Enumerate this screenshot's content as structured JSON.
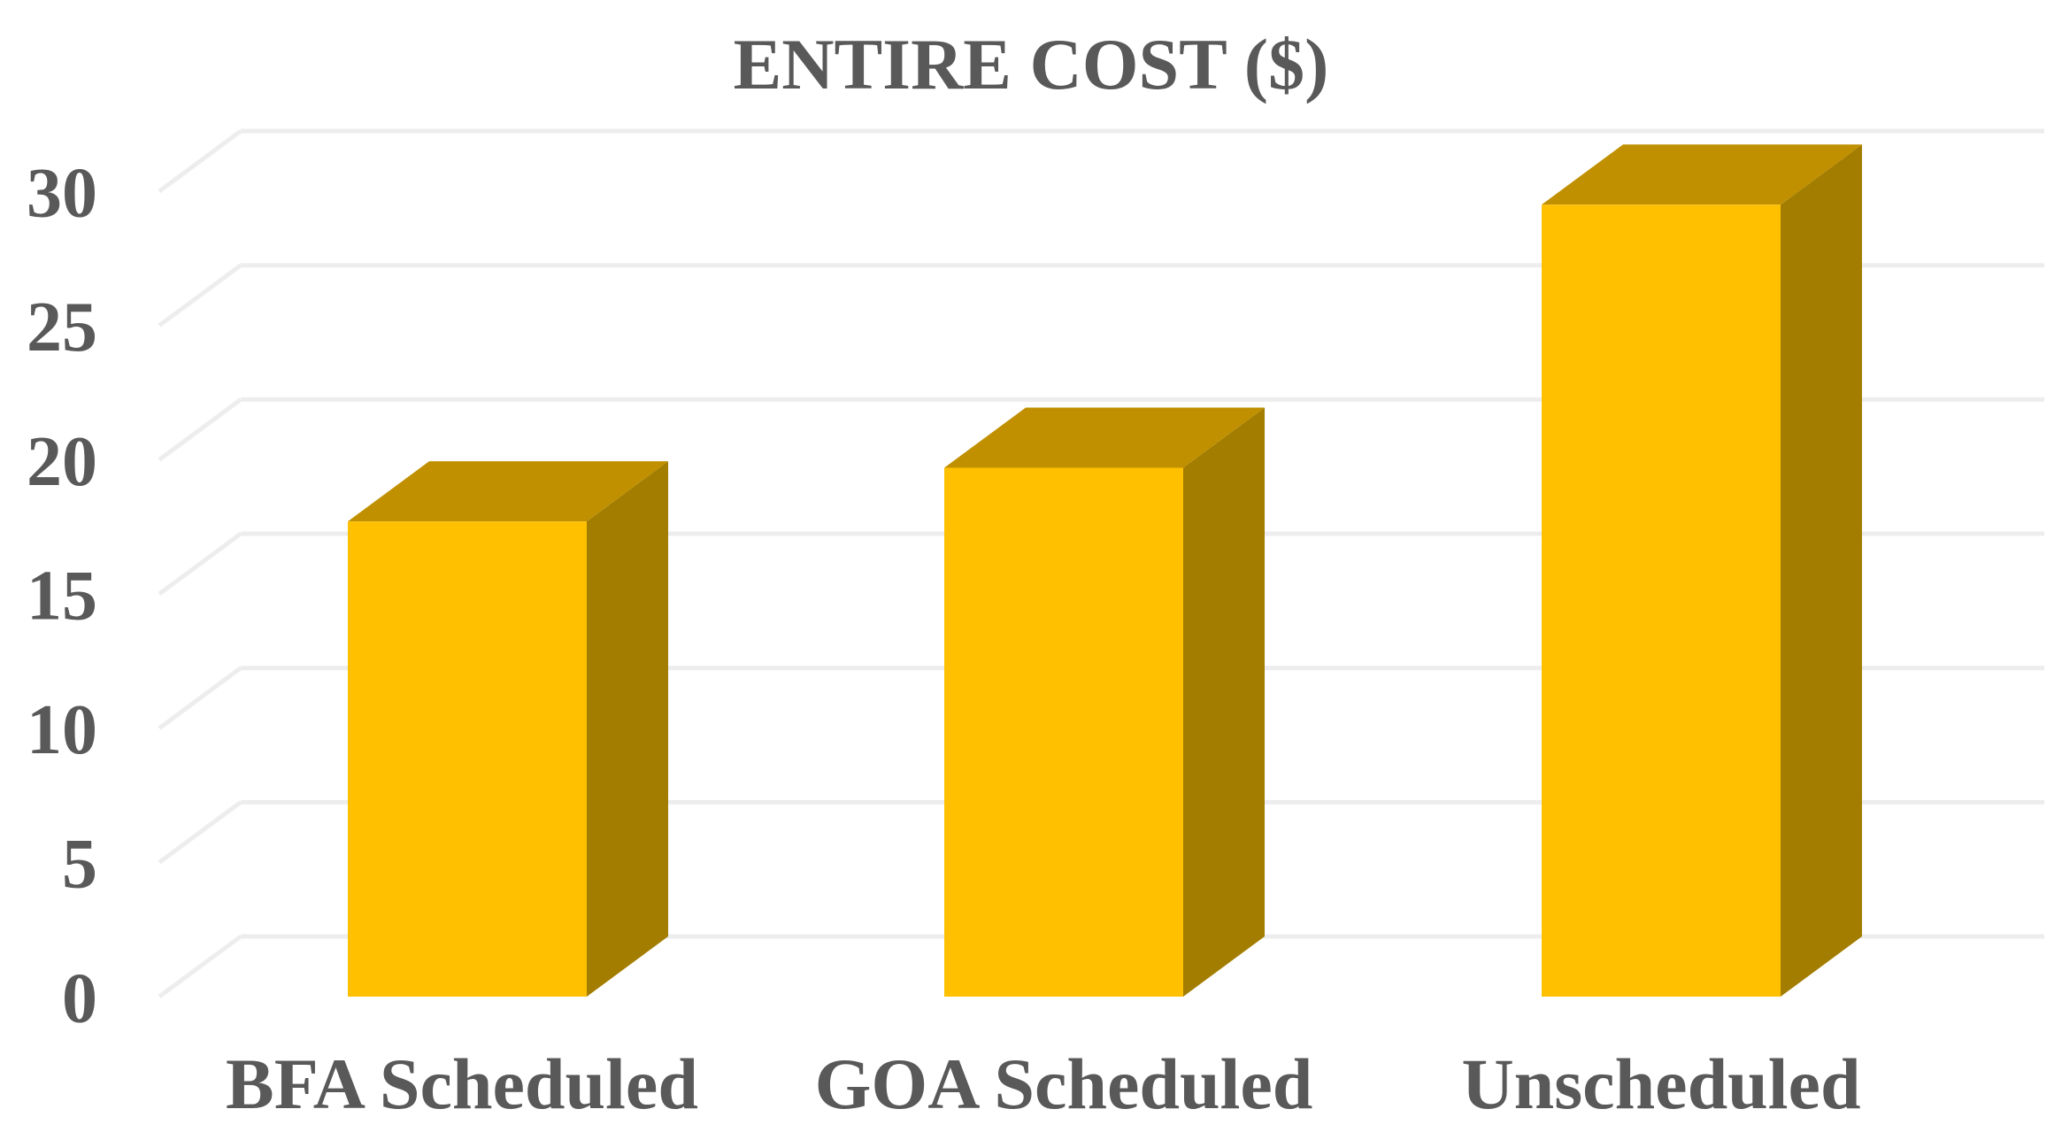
{
  "chart_data": {
    "type": "bar",
    "title": "ENTIRE COST ($)",
    "xlabel": "",
    "ylabel": "",
    "categories": [
      "BFA Scheduled",
      "GOA Scheduled",
      "Unscheduled"
    ],
    "values": [
      17.7,
      19.7,
      29.5
    ],
    "ylim": [
      0,
      30
    ],
    "yticks": [
      0,
      5,
      10,
      15,
      20,
      25,
      30
    ],
    "ytick_labels": [
      "0",
      "5",
      "10",
      "15",
      "20",
      "25",
      "30"
    ],
    "grid": true,
    "legend": "none",
    "style": "3d-column",
    "colors": {
      "bar_front": "#FFC000",
      "bar_top": "#C09000",
      "bar_side": "#A37D00",
      "grid": "#EDEDED",
      "text": "#595959"
    }
  }
}
